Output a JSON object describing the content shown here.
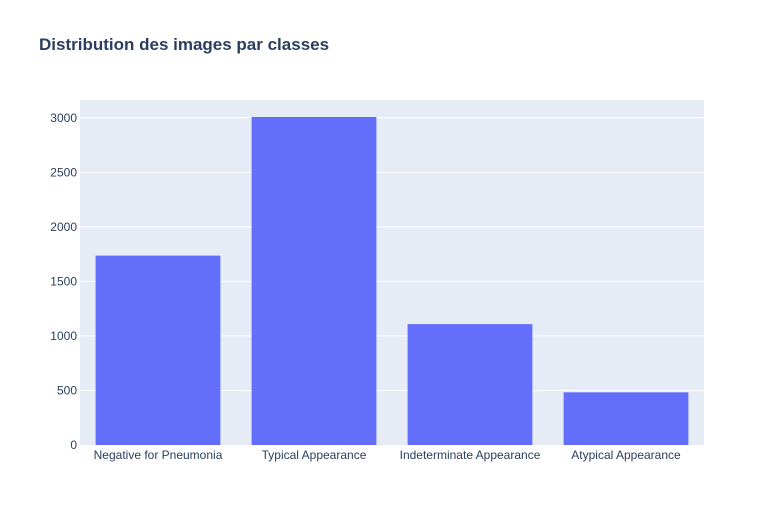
{
  "chart_data": {
    "type": "bar",
    "title": "Distribution des images par classes",
    "xlabel": "",
    "ylabel": "",
    "categories": [
      "Negative for Pneumonia",
      "Typical Appearance",
      "Indeterminate Appearance",
      "Atypical Appearance"
    ],
    "values": [
      1736,
      3007,
      1108,
      483
    ],
    "ylim": [
      0,
      3163
    ],
    "yticks": [
      0,
      500,
      1000,
      1500,
      2000,
      2500,
      3000
    ],
    "grid": true,
    "legend": "none"
  },
  "colors": {
    "plot_background": "#e5ecf6",
    "bar": "#636efa",
    "grid": "#ffffff",
    "text": "#2a3f5f"
  }
}
